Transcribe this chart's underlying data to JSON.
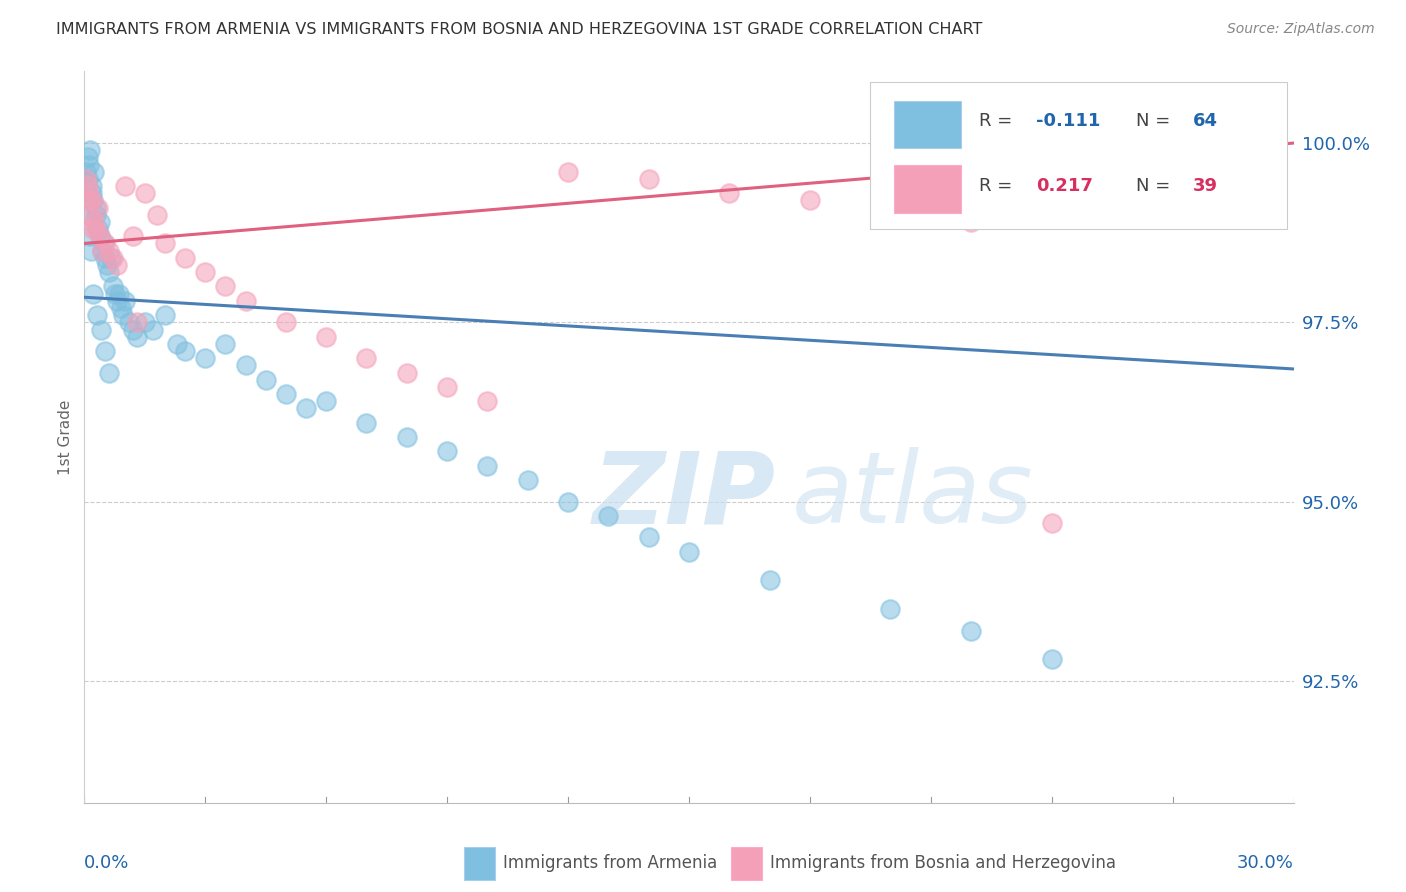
{
  "title": "IMMIGRANTS FROM ARMENIA VS IMMIGRANTS FROM BOSNIA AND HERZEGOVINA 1ST GRADE CORRELATION CHART",
  "source": "Source: ZipAtlas.com",
  "ylabel": "1st Grade",
  "yticks": [
    92.5,
    95.0,
    97.5,
    100.0
  ],
  "ytick_labels": [
    "92.5%",
    "95.0%",
    "97.5%",
    "100.0%"
  ],
  "xlim": [
    0.0,
    30.0
  ],
  "ylim": [
    90.8,
    101.0
  ],
  "color_blue": "#7fbfdf",
  "color_pink": "#f4a0b8",
  "color_blue_line": "#4a7fb5",
  "color_pink_line": "#e06080",
  "color_blue_text": "#2166ac",
  "color_pink_text": "#d63060",
  "watermark_zip": "ZIP",
  "watermark_atlas": "atlas",
  "arm_x": [
    0.05,
    0.08,
    0.1,
    0.12,
    0.15,
    0.18,
    0.2,
    0.22,
    0.25,
    0.28,
    0.3,
    0.35,
    0.38,
    0.4,
    0.45,
    0.48,
    0.5,
    0.55,
    0.6,
    0.65,
    0.7,
    0.75,
    0.8,
    0.85,
    0.9,
    0.95,
    1.0,
    1.1,
    1.2,
    1.3,
    1.5,
    1.7,
    2.0,
    2.3,
    2.5,
    3.0,
    3.5,
    4.0,
    4.5,
    5.0,
    5.5,
    6.0,
    7.0,
    8.0,
    9.0,
    10.0,
    11.0,
    12.0,
    13.0,
    14.0,
    15.0,
    17.0,
    20.0,
    22.0,
    24.0,
    0.06,
    0.09,
    0.13,
    0.17,
    0.22,
    0.32,
    0.42,
    0.52,
    0.62
  ],
  "arm_y": [
    99.6,
    99.5,
    99.8,
    99.7,
    99.9,
    99.4,
    99.3,
    99.2,
    99.6,
    99.1,
    99.0,
    98.8,
    98.9,
    98.7,
    98.5,
    98.6,
    98.4,
    98.3,
    98.2,
    98.4,
    98.0,
    97.9,
    97.8,
    97.9,
    97.7,
    97.6,
    97.8,
    97.5,
    97.4,
    97.3,
    97.5,
    97.4,
    97.6,
    97.2,
    97.1,
    97.0,
    97.2,
    96.9,
    96.7,
    96.5,
    96.3,
    96.4,
    96.1,
    95.9,
    95.7,
    95.5,
    95.3,
    95.0,
    94.8,
    94.5,
    94.3,
    93.9,
    93.5,
    93.2,
    92.8,
    99.3,
    99.0,
    98.7,
    98.5,
    97.9,
    97.6,
    97.4,
    97.1,
    96.8
  ],
  "bos_x": [
    0.05,
    0.08,
    0.1,
    0.15,
    0.2,
    0.25,
    0.3,
    0.35,
    0.4,
    0.5,
    0.6,
    0.7,
    0.8,
    1.0,
    1.2,
    1.5,
    1.8,
    2.0,
    2.5,
    3.0,
    3.5,
    4.0,
    5.0,
    6.0,
    7.0,
    8.0,
    9.0,
    10.0,
    12.0,
    14.0,
    16.0,
    18.0,
    20.0,
    22.0,
    24.0,
    0.12,
    0.22,
    0.45,
    1.3
  ],
  "bos_y": [
    99.5,
    99.3,
    99.4,
    99.0,
    99.2,
    98.9,
    98.8,
    99.1,
    98.7,
    98.6,
    98.5,
    98.4,
    98.3,
    99.4,
    98.7,
    99.3,
    99.0,
    98.6,
    98.4,
    98.2,
    98.0,
    97.8,
    97.5,
    97.3,
    97.0,
    96.8,
    96.6,
    96.4,
    99.6,
    99.5,
    99.3,
    99.2,
    99.0,
    98.9,
    94.7,
    99.2,
    98.8,
    98.5,
    97.5
  ],
  "arm_line_x0": 0.0,
  "arm_line_y0": 97.85,
  "arm_line_x1": 30.0,
  "arm_line_y1": 96.85,
  "bos_line_x0": 0.0,
  "bos_line_y0": 98.6,
  "bos_line_x1": 30.0,
  "bos_line_y1": 100.0
}
